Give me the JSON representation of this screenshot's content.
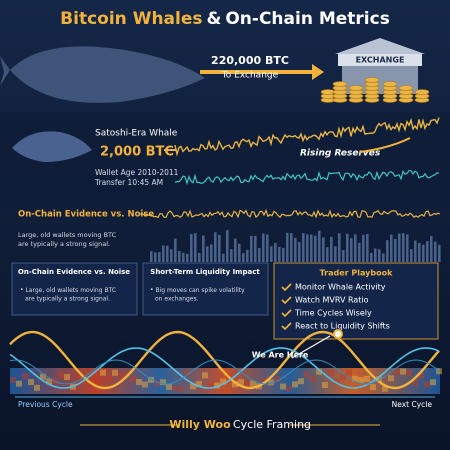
{
  "header": {
    "title_highlight": "Bitcoin Whales",
    "title_amp": "&",
    "title_rest": "On-Chain Metrics"
  },
  "transfer": {
    "amount": "220,000 BTC",
    "direction": "To Exchange",
    "exchange": "EXCHANGE"
  },
  "satoshi": {
    "label": "Satoshi-Era Whale",
    "amount": "2,000 BTC",
    "reserves": "Rising Reserves",
    "wallet_age": "Wallet Age 2010-2011",
    "time": "Transfer 10:45 AM"
  },
  "evidence": {
    "title": "On-Chain Evidence vs. Noise",
    "note": [
      "Large, old wallets moving BTC",
      "are typically a strong signal."
    ]
  },
  "panels": [
    {
      "title": "On-Chain Evidence vs. Noise",
      "bullet": [
        "Large, old wallets moving BTC",
        "are typically a strong signal."
      ]
    },
    {
      "title": "Short-Term Liquidity Impact",
      "bullet": [
        "Big moves can spike volatility",
        "on exchanges."
      ]
    }
  ],
  "playbook": {
    "title": "Trader Playbook",
    "items": [
      "Monitor Whale Activity",
      "Watch MVRV Ratio",
      "Time Cycles Wisely",
      "React to Liquidity Shifts"
    ]
  },
  "cycle": {
    "marker": "We Are Here",
    "previous": "Previous Cycle",
    "next": "Next Cycle"
  },
  "footer": {
    "author": "Willy Woo",
    "caption": "Cycle Framing"
  }
}
